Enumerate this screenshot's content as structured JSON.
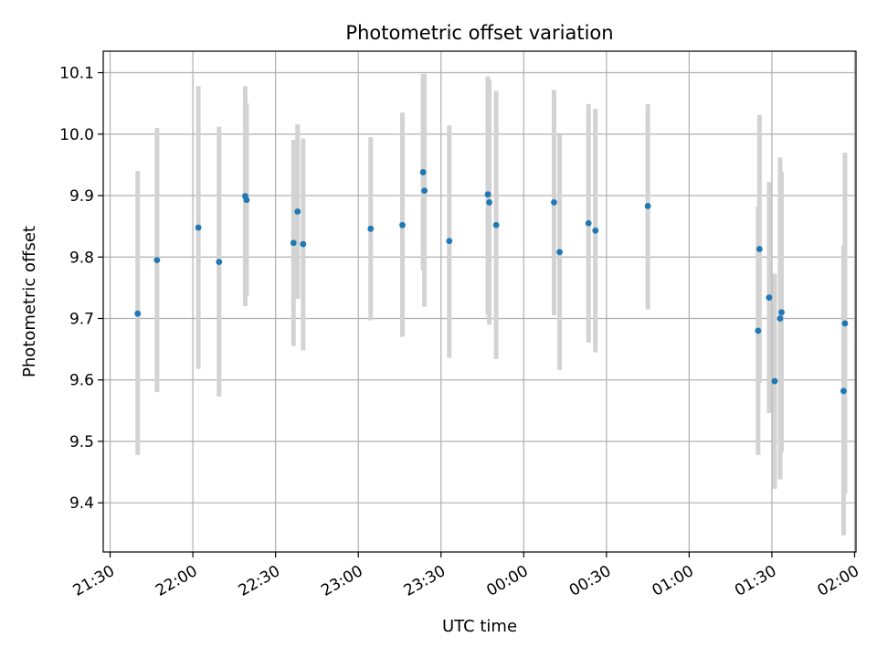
{
  "chart_data": {
    "type": "scatter",
    "title": "Photometric offset variation",
    "xlabel": "UTC time",
    "ylabel": "Photometric offset",
    "grid": true,
    "xlim": [
      "21:27:30",
      "02:00:30"
    ],
    "ylim": [
      9.32,
      10.135
    ],
    "x_ticks": [
      "21:30",
      "22:00",
      "22:30",
      "23:00",
      "23:30",
      "00:00",
      "00:30",
      "01:00",
      "01:30",
      "02:00"
    ],
    "y_ticks": [
      9.4,
      9.5,
      9.6,
      9.7,
      9.8,
      9.9,
      10.0,
      10.1
    ],
    "colors": {
      "points": "#1f77b4",
      "errorbars": "#d3d3d3",
      "grid": "#b0b0b0"
    },
    "points": [
      {
        "t": "21:40:00",
        "y": 9.708,
        "lo": 9.478,
        "hi": 9.94
      },
      {
        "t": "21:47:00",
        "y": 9.795,
        "lo": 9.58,
        "hi": 10.01
      },
      {
        "t": "22:02:00",
        "y": 9.848,
        "lo": 9.618,
        "hi": 10.078
      },
      {
        "t": "22:09:30",
        "y": 9.792,
        "lo": 9.573,
        "hi": 10.012
      },
      {
        "t": "22:19:00",
        "y": 9.899,
        "lo": 9.72,
        "hi": 10.078
      },
      {
        "t": "22:19:30",
        "y": 9.893,
        "lo": 9.736,
        "hi": 10.05
      },
      {
        "t": "22:36:30",
        "y": 9.823,
        "lo": 9.655,
        "hi": 9.991
      },
      {
        "t": "22:38:00",
        "y": 9.874,
        "lo": 9.732,
        "hi": 10.016
      },
      {
        "t": "22:40:00",
        "y": 9.821,
        "lo": 9.648,
        "hi": 9.993
      },
      {
        "t": "23:04:30",
        "y": 9.846,
        "lo": 9.697,
        "hi": 9.995
      },
      {
        "t": "23:16:00",
        "y": 9.852,
        "lo": 9.67,
        "hi": 10.035
      },
      {
        "t": "23:23:30",
        "y": 9.938,
        "lo": 9.778,
        "hi": 10.098
      },
      {
        "t": "23:24:00",
        "y": 9.908,
        "lo": 9.719,
        "hi": 10.098
      },
      {
        "t": "23:33:00",
        "y": 9.826,
        "lo": 9.636,
        "hi": 10.014
      },
      {
        "t": "23:47:00",
        "y": 9.902,
        "lo": 9.706,
        "hi": 10.094
      },
      {
        "t": "23:47:30",
        "y": 9.889,
        "lo": 9.69,
        "hi": 10.088
      },
      {
        "t": "23:50:00",
        "y": 9.852,
        "lo": 9.634,
        "hi": 10.07
      },
      {
        "t": "00:11:00",
        "y": 9.889,
        "lo": 9.705,
        "hi": 10.072
      },
      {
        "t": "00:13:00",
        "y": 9.808,
        "lo": 9.616,
        "hi": 9.999
      },
      {
        "t": "00:23:30",
        "y": 9.855,
        "lo": 9.661,
        "hi": 10.049
      },
      {
        "t": "00:26:00",
        "y": 9.843,
        "lo": 9.645,
        "hi": 10.041
      },
      {
        "t": "00:45:00",
        "y": 9.883,
        "lo": 9.715,
        "hi": 10.049
      },
      {
        "t": "01:25:00",
        "y": 9.68,
        "lo": 9.478,
        "hi": 9.882
      },
      {
        "t": "01:25:30",
        "y": 9.813,
        "lo": 9.595,
        "hi": 10.031
      },
      {
        "t": "01:29:00",
        "y": 9.734,
        "lo": 9.546,
        "hi": 9.922
      },
      {
        "t": "01:31:00",
        "y": 9.598,
        "lo": 9.423,
        "hi": 9.773
      },
      {
        "t": "01:33:00",
        "y": 9.7,
        "lo": 9.438,
        "hi": 9.962
      },
      {
        "t": "01:33:30",
        "y": 9.71,
        "lo": 9.483,
        "hi": 9.938
      },
      {
        "t": "01:56:00",
        "y": 9.582,
        "lo": 9.347,
        "hi": 9.818
      },
      {
        "t": "01:56:30",
        "y": 9.692,
        "lo": 9.415,
        "hi": 9.97
      }
    ]
  }
}
